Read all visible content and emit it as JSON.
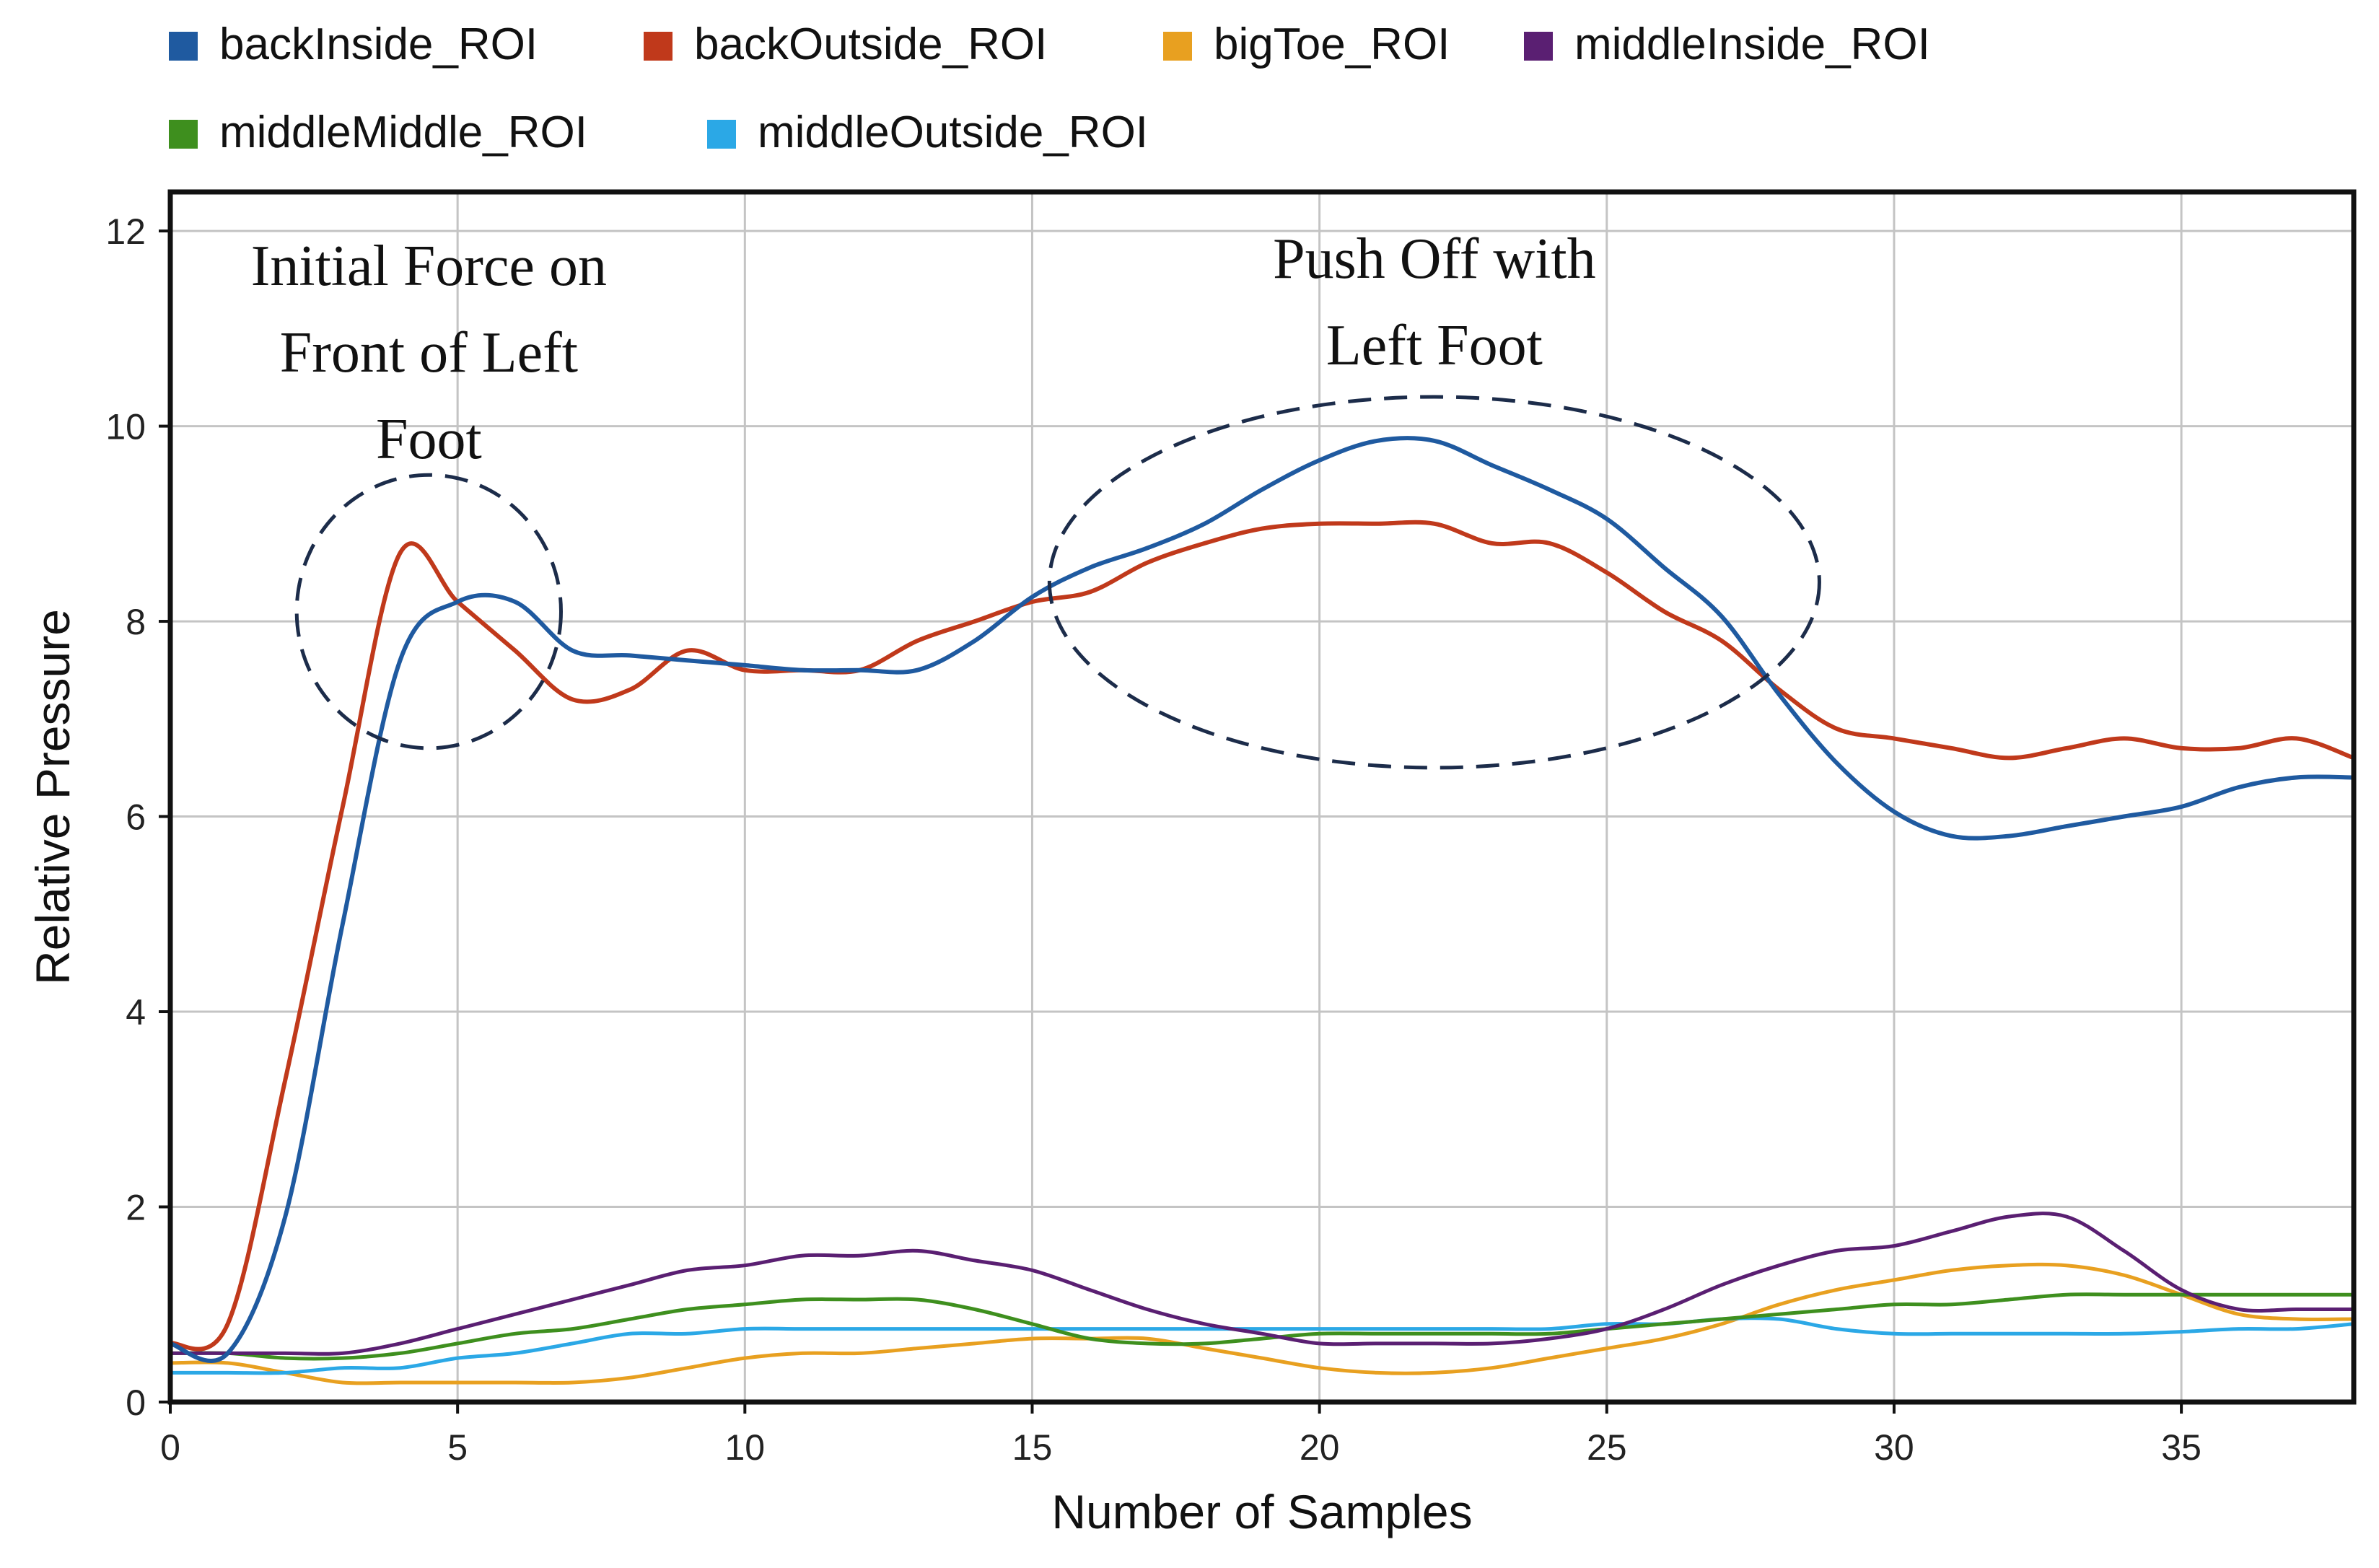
{
  "chart_data": {
    "type": "line",
    "xlabel": "Number of Samples",
    "ylabel": "Relative Pressure",
    "xlim": [
      0,
      38
    ],
    "ylim": [
      0,
      12.4
    ],
    "grid": true,
    "legend_position": "top",
    "xticks": [
      0,
      5,
      10,
      15,
      20,
      25,
      30,
      35
    ],
    "yticks": [
      0,
      2,
      4,
      6,
      8,
      10,
      12
    ],
    "x": [
      0,
      1,
      2,
      3,
      4,
      5,
      6,
      7,
      8,
      9,
      10,
      11,
      12,
      13,
      14,
      15,
      16,
      17,
      18,
      19,
      20,
      21,
      22,
      23,
      24,
      25,
      26,
      27,
      28,
      29,
      30,
      31,
      32,
      33,
      34,
      35,
      36,
      37,
      38
    ],
    "series": [
      {
        "name": "backInside_ROI",
        "color": "#1f5aa0",
        "values": [
          0.6,
          0.5,
          1.9,
          4.9,
          7.6,
          8.2,
          8.2,
          7.7,
          7.65,
          7.6,
          7.55,
          7.5,
          7.5,
          7.5,
          7.8,
          8.25,
          8.55,
          8.75,
          9.0,
          9.35,
          9.65,
          9.85,
          9.85,
          9.6,
          9.35,
          9.05,
          8.55,
          8.05,
          7.25,
          6.55,
          6.05,
          5.8,
          5.8,
          5.9,
          6.0,
          6.1,
          6.3,
          6.4,
          6.4
        ]
      },
      {
        "name": "backOutside_ROI",
        "color": "#c0391b",
        "values": [
          0.6,
          0.8,
          3.3,
          6.1,
          8.7,
          8.2,
          7.7,
          7.2,
          7.3,
          7.7,
          7.5,
          7.5,
          7.5,
          7.8,
          8.0,
          8.2,
          8.3,
          8.6,
          8.8,
          8.95,
          9.0,
          9.0,
          9.0,
          8.8,
          8.8,
          8.5,
          8.1,
          7.8,
          7.3,
          6.9,
          6.8,
          6.7,
          6.6,
          6.7,
          6.8,
          6.7,
          6.7,
          6.8,
          6.6
        ]
      },
      {
        "name": "bigToe_ROI",
        "color": "#e8a020",
        "values": [
          0.4,
          0.4,
          0.3,
          0.2,
          0.2,
          0.2,
          0.2,
          0.2,
          0.25,
          0.35,
          0.45,
          0.5,
          0.5,
          0.55,
          0.6,
          0.65,
          0.65,
          0.65,
          0.55,
          0.45,
          0.35,
          0.3,
          0.3,
          0.35,
          0.45,
          0.55,
          0.65,
          0.8,
          1.0,
          1.15,
          1.25,
          1.35,
          1.4,
          1.4,
          1.3,
          1.1,
          0.9,
          0.85,
          0.85
        ]
      },
      {
        "name": "middleInside_ROI",
        "color": "#5a1f72",
        "values": [
          0.5,
          0.5,
          0.5,
          0.5,
          0.6,
          0.75,
          0.9,
          1.05,
          1.2,
          1.35,
          1.4,
          1.5,
          1.5,
          1.55,
          1.45,
          1.35,
          1.15,
          0.95,
          0.8,
          0.7,
          0.6,
          0.6,
          0.6,
          0.6,
          0.65,
          0.75,
          0.95,
          1.2,
          1.4,
          1.55,
          1.6,
          1.75,
          1.9,
          1.9,
          1.55,
          1.15,
          0.95,
          0.95,
          0.95
        ]
      },
      {
        "name": "middleMiddle_ROI",
        "color": "#3e8f1e",
        "values": [
          0.5,
          0.5,
          0.45,
          0.45,
          0.5,
          0.6,
          0.7,
          0.75,
          0.85,
          0.95,
          1.0,
          1.05,
          1.05,
          1.05,
          0.95,
          0.8,
          0.65,
          0.6,
          0.6,
          0.65,
          0.7,
          0.7,
          0.7,
          0.7,
          0.7,
          0.75,
          0.8,
          0.85,
          0.9,
          0.95,
          1.0,
          1.0,
          1.05,
          1.1,
          1.1,
          1.1,
          1.1,
          1.1,
          1.1
        ]
      },
      {
        "name": "middleOutside_ROI",
        "color": "#2ba8e6",
        "values": [
          0.3,
          0.3,
          0.3,
          0.35,
          0.35,
          0.45,
          0.5,
          0.6,
          0.7,
          0.7,
          0.75,
          0.75,
          0.75,
          0.75,
          0.75,
          0.75,
          0.75,
          0.75,
          0.75,
          0.75,
          0.75,
          0.75,
          0.75,
          0.75,
          0.75,
          0.8,
          0.8,
          0.85,
          0.85,
          0.75,
          0.7,
          0.7,
          0.7,
          0.7,
          0.7,
          0.72,
          0.75,
          0.75,
          0.8
        ]
      }
    ],
    "annotations": [
      {
        "lines": [
          "Initial Force on",
          "Front of Left",
          "Foot"
        ],
        "center_x": 4.5,
        "center_y": 8.1,
        "radius_x": 2.3,
        "radius_y": 1.4
      },
      {
        "lines": [
          "Push Off with",
          "Left Foot"
        ],
        "center_x": 22,
        "center_y": 8.4,
        "radius_x": 6.7,
        "radius_y": 1.9
      }
    ]
  }
}
